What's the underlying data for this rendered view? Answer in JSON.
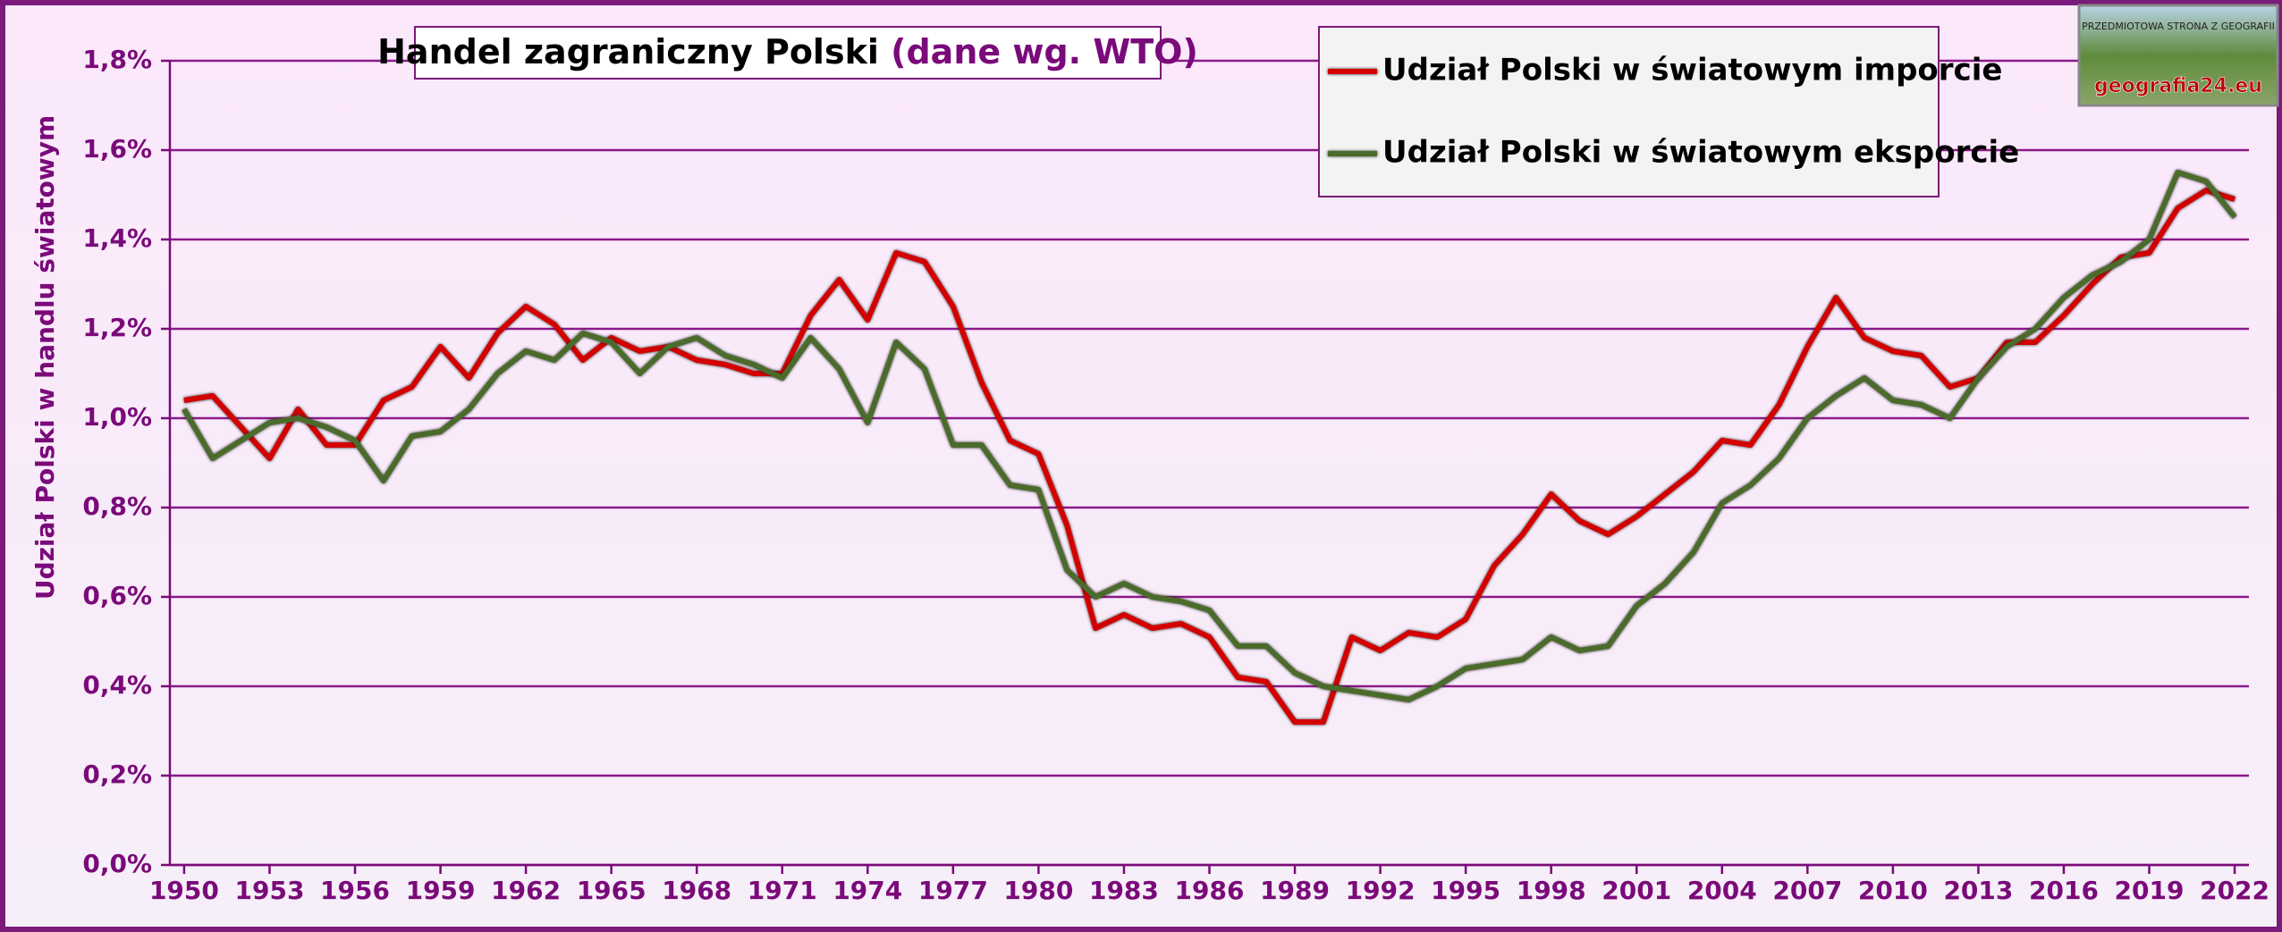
{
  "chart_data": {
    "type": "line",
    "title": "Handel zagraniczny Polski",
    "subtitle": "(dane wg. WTO)",
    "y_label": "Udział Polski w handlu światowym",
    "logo": {
      "top": "PRZEDMIOTOWA STRONA Z GEOGRAFII",
      "site": "geografia24.eu"
    },
    "x": [
      1950,
      1951,
      1952,
      1953,
      1954,
      1955,
      1956,
      1957,
      1958,
      1959,
      1960,
      1961,
      1962,
      1963,
      1964,
      1965,
      1966,
      1967,
      1968,
      1969,
      1970,
      1971,
      1972,
      1973,
      1974,
      1975,
      1976,
      1977,
      1978,
      1979,
      1980,
      1981,
      1982,
      1983,
      1984,
      1985,
      1986,
      1987,
      1988,
      1989,
      1990,
      1991,
      1992,
      1993,
      1994,
      1995,
      1996,
      1997,
      1998,
      1999,
      2000,
      2001,
      2002,
      2003,
      2004,
      2005,
      2006,
      2007,
      2008,
      2009,
      2010,
      2011,
      2012,
      2013,
      2014,
      2015,
      2016,
      2017,
      2018,
      2019,
      2020,
      2021,
      2022
    ],
    "series": [
      {
        "name": "Udział Polski w światowym imporcie",
        "color": "#d40000",
        "values": [
          1.04,
          1.05,
          0.98,
          0.91,
          1.02,
          0.94,
          0.94,
          1.04,
          1.07,
          1.16,
          1.09,
          1.19,
          1.25,
          1.21,
          1.13,
          1.18,
          1.15,
          1.16,
          1.13,
          1.12,
          1.1,
          1.1,
          1.23,
          1.31,
          1.22,
          1.37,
          1.35,
          1.25,
          1.08,
          0.95,
          0.92,
          0.76,
          0.53,
          0.56,
          0.53,
          0.54,
          0.51,
          0.42,
          0.41,
          0.32,
          0.32,
          0.51,
          0.48,
          0.52,
          0.51,
          0.55,
          0.67,
          0.74,
          0.83,
          0.77,
          0.74,
          0.78,
          0.83,
          0.88,
          0.95,
          0.94,
          1.03,
          1.16,
          1.27,
          1.18,
          1.15,
          1.14,
          1.07,
          1.09,
          1.17,
          1.17,
          1.23,
          1.3,
          1.36,
          1.37,
          1.47,
          1.51,
          1.49
        ]
      },
      {
        "name": "Udział Polski w światowym eksporcie",
        "color": "#4b6b2b",
        "values": [
          1.02,
          0.91,
          0.95,
          0.99,
          1.0,
          0.98,
          0.95,
          0.86,
          0.96,
          0.97,
          1.02,
          1.1,
          1.15,
          1.13,
          1.19,
          1.17,
          1.1,
          1.16,
          1.18,
          1.14,
          1.12,
          1.09,
          1.18,
          1.11,
          0.99,
          1.17,
          1.11,
          0.94,
          0.94,
          0.85,
          0.84,
          0.66,
          0.6,
          0.63,
          0.6,
          0.59,
          0.57,
          0.49,
          0.49,
          0.43,
          0.4,
          0.39,
          0.38,
          0.37,
          0.4,
          0.44,
          0.45,
          0.46,
          0.51,
          0.48,
          0.49,
          0.58,
          0.63,
          0.7,
          0.81,
          0.85,
          0.91,
          1.0,
          1.05,
          1.09,
          1.04,
          1.03,
          1.0,
          1.09,
          1.16,
          1.2,
          1.27,
          1.32,
          1.35,
          1.4,
          1.55,
          1.53,
          1.45
        ]
      }
    ],
    "xlim": [
      1949.5,
      2022.5
    ],
    "xticks": [
      1950,
      1953,
      1956,
      1959,
      1962,
      1965,
      1968,
      1971,
      1974,
      1977,
      1980,
      1983,
      1986,
      1989,
      1992,
      1995,
      1998,
      2001,
      2004,
      2007,
      2010,
      2013,
      2016,
      2019,
      2022
    ],
    "ylim": [
      0,
      1.8
    ],
    "yticks": [
      {
        "value": 0,
        "label": "0,0%"
      },
      {
        "value": 0.2,
        "label": "0,2%"
      },
      {
        "value": 0.4,
        "label": "0,4%"
      },
      {
        "value": 0.6,
        "label": "0,6%"
      },
      {
        "value": 0.8,
        "label": "0,8%"
      },
      {
        "value": 1.0,
        "label": "1,0%"
      },
      {
        "value": 1.2,
        "label": "1,2%"
      },
      {
        "value": 1.4,
        "label": "1,4%"
      },
      {
        "value": 1.6,
        "label": "1,6%"
      },
      {
        "value": 1.8,
        "label": "1,8%"
      }
    ],
    "grid": true,
    "legend": "top-right"
  }
}
